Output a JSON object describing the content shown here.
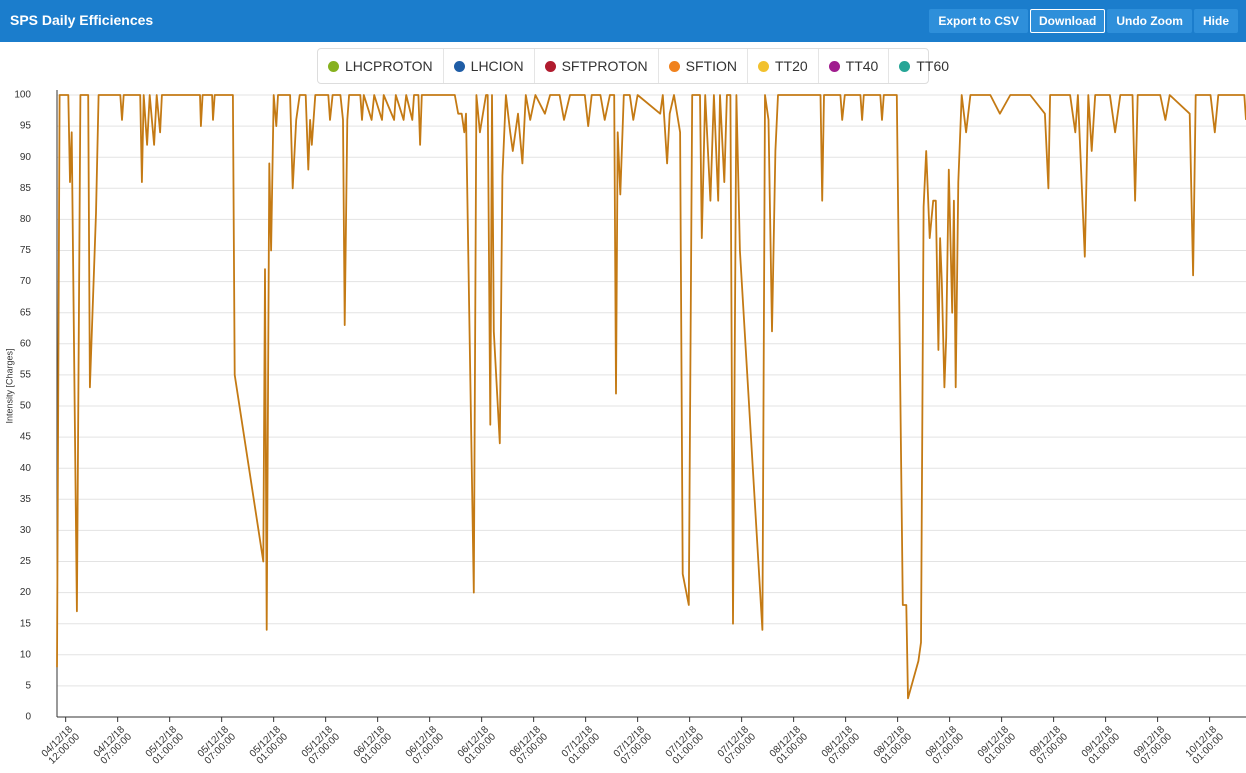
{
  "header": {
    "title": "SPS Daily Efficiences",
    "buttons": [
      "Export to CSV",
      "Download",
      "Undo Zoom",
      "Hide"
    ]
  },
  "chart_data": {
    "type": "line",
    "y_label": "Intensity [Charges]",
    "legend": [
      {
        "name": "LHCPROTON",
        "color": "#86b11f"
      },
      {
        "name": "LHCION",
        "color": "#1f5da6"
      },
      {
        "name": "SFTPROTON",
        "color": "#b01b2e"
      },
      {
        "name": "SFTION",
        "color": "#f0821e"
      },
      {
        "name": "TT20",
        "color": "#f2c12e"
      },
      {
        "name": "TT40",
        "color": "#a01d8e"
      },
      {
        "name": "TT60",
        "color": "#26a596"
      }
    ],
    "grid": true,
    "ylim": [
      0,
      100
    ],
    "yticks": [
      0,
      5,
      10,
      15,
      20,
      25,
      30,
      35,
      40,
      45,
      50,
      55,
      60,
      65,
      70,
      75,
      80,
      85,
      90,
      95,
      100
    ],
    "xlim": [
      0,
      137.2
    ],
    "xticks": [
      {
        "value": 1,
        "label": "04/12/18\n12:00:00"
      },
      {
        "value": 7,
        "label": "04/12/18\n07:00:00"
      },
      {
        "value": 13,
        "label": "05/12/18\n01:00:00"
      },
      {
        "value": 19,
        "label": "05/12/18\n07:00:00"
      },
      {
        "value": 25,
        "label": "05/12/18\n01:00:00"
      },
      {
        "value": 31,
        "label": "05/12/18\n07:00:00"
      },
      {
        "value": 37,
        "label": "06/12/18\n01:00:00"
      },
      {
        "value": 43,
        "label": "06/12/18\n07:00:00"
      },
      {
        "value": 49,
        "label": "06/12/18\n01:00:00"
      },
      {
        "value": 55,
        "label": "06/12/18\n07:00:00"
      },
      {
        "value": 61,
        "label": "07/12/18\n01:00:00"
      },
      {
        "value": 67,
        "label": "07/12/18\n07:00:00"
      },
      {
        "value": 73,
        "label": "07/12/18\n01:00:00"
      },
      {
        "value": 79,
        "label": "07/12/18\n07:00:00"
      },
      {
        "value": 85,
        "label": "08/12/18\n01:00:00"
      },
      {
        "value": 91,
        "label": "08/12/18\n07:00:00"
      },
      {
        "value": 97,
        "label": "08/12/18\n01:00:00"
      },
      {
        "value": 103,
        "label": "08/12/18\n07:00:00"
      },
      {
        "value": 109,
        "label": "09/12/18\n01:00:00"
      },
      {
        "value": 115,
        "label": "09/12/18\n07:00:00"
      },
      {
        "value": 121,
        "label": "09/12/18\n01:00:00"
      },
      {
        "value": 127,
        "label": "09/12/18\n07:00:00"
      },
      {
        "value": 133,
        "label": "10/12/18\n01:00:00"
      }
    ],
    "x": [
      0,
      0.3,
      1.3,
      1.5,
      1.7,
      2.3,
      2.7,
      3.6,
      3.8,
      4.5,
      4.8,
      7.3,
      7.5,
      7.7,
      9.6,
      9.8,
      10.0,
      10.4,
      10.7,
      11.2,
      11.5,
      11.9,
      12.1,
      12.8,
      16.5,
      16.6,
      16.8,
      17.9,
      18.0,
      18.2,
      20.3,
      20.5,
      23.8,
      24.0,
      24.2,
      24.5,
      24.7,
      25.0,
      25.3,
      25.5,
      26.9,
      27.2,
      27.6,
      28.0,
      28.7,
      29.0,
      29.2,
      29.4,
      29.8,
      31.3,
      31.5,
      31.8,
      32.7,
      33.0,
      33.2,
      33.5,
      33.7,
      35.0,
      35.2,
      35.4,
      36.3,
      36.6,
      37.5,
      37.7,
      38.9,
      39.1,
      40.0,
      40.3,
      41.0,
      41.2,
      41.7,
      41.9,
      42.1,
      45.9,
      46.3,
      46.7,
      47.0,
      47.2,
      48.1,
      48.4,
      48.8,
      49.5,
      49.7,
      50.0,
      50.2,
      50.4,
      51.1,
      51.4,
      51.8,
      52.3,
      52.6,
      53.2,
      53.7,
      54.1,
      54.6,
      55.2,
      56.3,
      56.9,
      58.0,
      58.5,
      59.2,
      60.9,
      61.3,
      61.7,
      62.7,
      63.2,
      63.8,
      64.3,
      64.5,
      64.7,
      65.0,
      65.4,
      66.1,
      66.5,
      67.0,
      69.6,
      69.9,
      70.4,
      70.7,
      71.2,
      71.9,
      72.2,
      72.9,
      73.3,
      74.2,
      74.4,
      74.8,
      75.4,
      75.8,
      76.3,
      76.5,
      77.0,
      77.3,
      77.7,
      78.0,
      78.4,
      78.8,
      81.4,
      81.7,
      82.1,
      82.5,
      82.9,
      83.2,
      83.7,
      85.7,
      88.1,
      88.3,
      88.5,
      90.4,
      90.6,
      90.9,
      92.7,
      92.9,
      93.1,
      95.0,
      95.2,
      95.4,
      96.9,
      97.6,
      98.0,
      98.2,
      99.4,
      99.7,
      100.0,
      100.3,
      100.7,
      101.1,
      101.4,
      101.7,
      101.9,
      102.1,
      102.4,
      102.6,
      102.9,
      103.3,
      103.5,
      103.7,
      104.0,
      104.4,
      104.9,
      105.4,
      107.7,
      108.8,
      110.0,
      112.3,
      114.0,
      114.4,
      114.6,
      116.9,
      117.5,
      117.8,
      118.6,
      119.0,
      119.4,
      119.8,
      121.5,
      122.1,
      122.7,
      124.1,
      124.4,
      124.7,
      127.3,
      127.9,
      128.4,
      130.7,
      131.1,
      131.4,
      133.1,
      133.6,
      134.0,
      137.0,
      137.2
    ],
    "series": [
      {
        "color": "#c47a14",
        "values": [
          8,
          100,
          100,
          86,
          94,
          17,
          100,
          100,
          53,
          81,
          100,
          100,
          96,
          100,
          100,
          86,
          100,
          92,
          100,
          92,
          100,
          94,
          100,
          100,
          100,
          95,
          100,
          100,
          96,
          100,
          100,
          55,
          25,
          72,
          14,
          89,
          75,
          100,
          95,
          100,
          100,
          85,
          96,
          100,
          100,
          88,
          96,
          92,
          100,
          100,
          96,
          100,
          100,
          96,
          63,
          96,
          100,
          100,
          96,
          100,
          96,
          100,
          96,
          100,
          96,
          100,
          96,
          100,
          96,
          100,
          100,
          92,
          100,
          100,
          97,
          97,
          94,
          97,
          20,
          100,
          94,
          100,
          100,
          47,
          100,
          62,
          44,
          87,
          100,
          94,
          91,
          97,
          89,
          100,
          96,
          100,
          97,
          100,
          100,
          96,
          100,
          100,
          95,
          100,
          100,
          96,
          100,
          100,
          52,
          94,
          84,
          100,
          100,
          96,
          100,
          97,
          100,
          89,
          97,
          100,
          94,
          23,
          18,
          100,
          100,
          77,
          100,
          83,
          100,
          83,
          100,
          86,
          100,
          100,
          15,
          100,
          75,
          14,
          100,
          96,
          62,
          91,
          100,
          100,
          100,
          100,
          83,
          100,
          100,
          96,
          100,
          100,
          96,
          100,
          100,
          96,
          100,
          100,
          18,
          18,
          3,
          9,
          12,
          82,
          91,
          77,
          83,
          83,
          59,
          77,
          70,
          53,
          61,
          88,
          65,
          83,
          53,
          86,
          100,
          94,
          100,
          100,
          97,
          100,
          100,
          97,
          85,
          100,
          100,
          94,
          100,
          74,
          100,
          91,
          100,
          100,
          94,
          100,
          100,
          83,
          100,
          100,
          96,
          100,
          97,
          71,
          100,
          100,
          94,
          100,
          100,
          96
        ]
      }
    ]
  }
}
